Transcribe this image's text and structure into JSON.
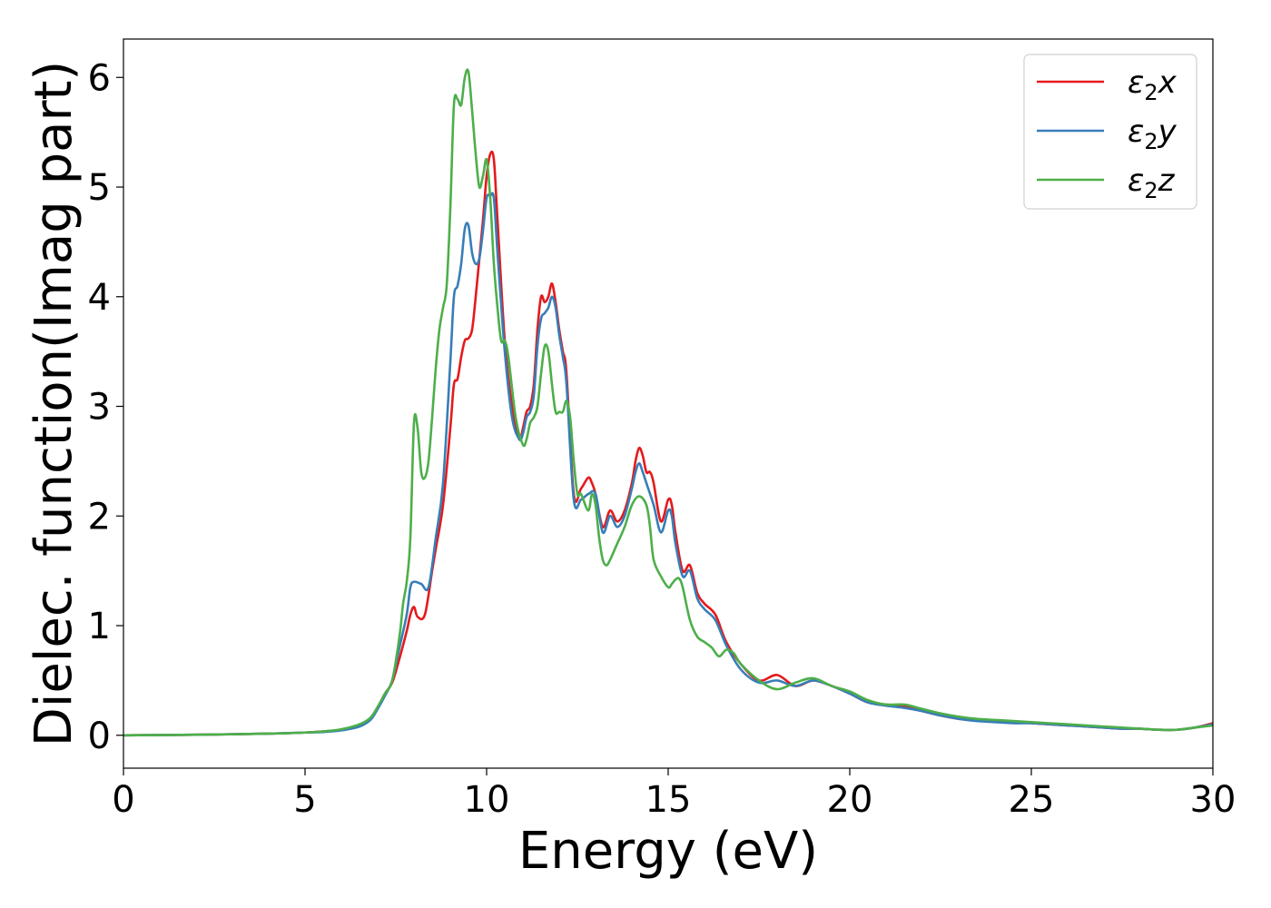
{
  "chart_data": {
    "type": "line",
    "title": "",
    "xlabel": "Energy (eV)",
    "ylabel": "Dielec. function(Imag part)",
    "xlim": [
      0,
      30
    ],
    "ylim": [
      -0.3,
      6.35
    ],
    "xticks": [
      0,
      5,
      10,
      15,
      20,
      25,
      30
    ],
    "yticks": [
      0,
      1,
      2,
      3,
      4,
      5,
      6
    ],
    "grid": false,
    "legend": {
      "position": "top-right"
    },
    "series": [
      {
        "name": "ε₂x",
        "legend_main": "ε",
        "legend_sub": "2",
        "legend_tail": "x",
        "color": "#e41a1c",
        "x": [
          0,
          2,
          4,
          5,
          5.5,
          6,
          6.5,
          6.8,
          7.0,
          7.2,
          7.4,
          7.6,
          7.8,
          7.9,
          8.0,
          8.1,
          8.3,
          8.5,
          8.6,
          8.8,
          9.0,
          9.1,
          9.2,
          9.3,
          9.4,
          9.5,
          9.6,
          9.7,
          9.9,
          10.0,
          10.1,
          10.2,
          10.3,
          10.5,
          10.7,
          10.9,
          11.0,
          11.1,
          11.2,
          11.3,
          11.4,
          11.5,
          11.6,
          11.7,
          11.8,
          11.9,
          12.0,
          12.1,
          12.2,
          12.4,
          12.6,
          12.8,
          12.9,
          13.0,
          13.2,
          13.4,
          13.6,
          13.8,
          14.0,
          14.1,
          14.2,
          14.3,
          14.4,
          14.5,
          14.6,
          14.8,
          15.0,
          15.1,
          15.2,
          15.4,
          15.6,
          15.8,
          16.0,
          16.3,
          16.6,
          17.0,
          17.5,
          18.0,
          18.5,
          19.0,
          19.5,
          20.0,
          20.5,
          21.0,
          21.5,
          22.0,
          22.5,
          23.0,
          23.5,
          24.0,
          24.5,
          25.0,
          25.5,
          26.0,
          26.5,
          27.0,
          27.5,
          28.0,
          28.5,
          29.0,
          29.5,
          30.0
        ],
        "y": [
          0,
          0.005,
          0.015,
          0.025,
          0.035,
          0.05,
          0.09,
          0.15,
          0.25,
          0.38,
          0.48,
          0.7,
          0.95,
          1.1,
          1.17,
          1.08,
          1.1,
          1.5,
          1.7,
          2.1,
          2.8,
          3.2,
          3.25,
          3.45,
          3.6,
          3.62,
          3.7,
          4.0,
          4.7,
          5.1,
          5.3,
          5.25,
          4.7,
          3.6,
          3.0,
          2.7,
          2.8,
          2.95,
          3.0,
          3.2,
          3.7,
          4.0,
          3.95,
          4.0,
          4.12,
          3.95,
          3.7,
          3.5,
          3.3,
          2.2,
          2.25,
          2.35,
          2.3,
          2.2,
          1.9,
          2.05,
          1.95,
          2.05,
          2.3,
          2.5,
          2.62,
          2.55,
          2.4,
          2.4,
          2.3,
          1.95,
          2.15,
          2.1,
          1.85,
          1.5,
          1.55,
          1.3,
          1.2,
          1.1,
          0.85,
          0.65,
          0.5,
          0.55,
          0.45,
          0.5,
          0.45,
          0.38,
          0.3,
          0.28,
          0.27,
          0.22,
          0.18,
          0.15,
          0.14,
          0.13,
          0.12,
          0.11,
          0.1,
          0.09,
          0.08,
          0.07,
          0.06,
          0.06,
          0.05,
          0.05,
          0.07,
          0.11
        ]
      },
      {
        "name": "ε₂y",
        "legend_main": "ε",
        "legend_sub": "2",
        "legend_tail": "y",
        "color": "#377eb8",
        "x": [
          0,
          2,
          4,
          5,
          5.5,
          6,
          6.5,
          6.8,
          7.0,
          7.2,
          7.4,
          7.6,
          7.8,
          7.9,
          8.0,
          8.2,
          8.4,
          8.6,
          8.8,
          9.0,
          9.1,
          9.2,
          9.3,
          9.4,
          9.5,
          9.6,
          9.7,
          9.8,
          9.9,
          10.0,
          10.1,
          10.2,
          10.3,
          10.5,
          10.7,
          10.9,
          11.0,
          11.1,
          11.2,
          11.3,
          11.4,
          11.5,
          11.6,
          11.7,
          11.8,
          11.9,
          12.0,
          12.1,
          12.2,
          12.4,
          12.6,
          12.8,
          13.0,
          13.2,
          13.4,
          13.6,
          13.8,
          14.0,
          14.1,
          14.2,
          14.3,
          14.4,
          14.6,
          14.8,
          15.0,
          15.1,
          15.2,
          15.4,
          15.6,
          15.8,
          16.0,
          16.3,
          16.6,
          17.0,
          17.5,
          18.0,
          18.5,
          19.0,
          19.5,
          20.0,
          20.5,
          21.0,
          21.5,
          22.0,
          22.5,
          23.0,
          23.5,
          24.0,
          24.5,
          25.0,
          25.5,
          26.0,
          26.5,
          27.0,
          27.5,
          28.0,
          28.5,
          29.0,
          29.5,
          30.0
        ],
        "y": [
          0,
          0.005,
          0.015,
          0.025,
          0.03,
          0.045,
          0.08,
          0.14,
          0.24,
          0.36,
          0.5,
          0.8,
          1.1,
          1.35,
          1.4,
          1.38,
          1.35,
          1.8,
          2.3,
          3.4,
          4.0,
          4.1,
          4.3,
          4.62,
          4.65,
          4.4,
          4.3,
          4.35,
          4.6,
          4.9,
          4.92,
          4.9,
          4.4,
          3.5,
          2.9,
          2.7,
          2.75,
          2.9,
          2.95,
          3.1,
          3.55,
          3.8,
          3.85,
          3.9,
          4.0,
          3.9,
          3.65,
          3.45,
          3.2,
          2.15,
          2.15,
          2.2,
          2.2,
          1.85,
          2.0,
          1.9,
          2.0,
          2.25,
          2.4,
          2.48,
          2.4,
          2.3,
          2.1,
          1.85,
          2.05,
          2.0,
          1.75,
          1.45,
          1.5,
          1.25,
          1.15,
          1.05,
          0.82,
          0.6,
          0.48,
          0.5,
          0.45,
          0.5,
          0.45,
          0.38,
          0.3,
          0.27,
          0.25,
          0.22,
          0.18,
          0.15,
          0.13,
          0.12,
          0.11,
          0.11,
          0.1,
          0.09,
          0.08,
          0.07,
          0.06,
          0.06,
          0.05,
          0.05,
          0.07,
          0.1
        ]
      },
      {
        "name": "ε₂z",
        "legend_main": "ε",
        "legend_sub": "2",
        "legend_tail": "z",
        "color": "#4daf4a",
        "x": [
          0,
          2,
          4,
          5,
          5.5,
          6,
          6.5,
          6.8,
          7.0,
          7.2,
          7.4,
          7.6,
          7.7,
          7.8,
          7.9,
          8.0,
          8.1,
          8.2,
          8.3,
          8.4,
          8.5,
          8.6,
          8.7,
          8.8,
          8.9,
          9.0,
          9.1,
          9.2,
          9.3,
          9.4,
          9.5,
          9.6,
          9.7,
          9.8,
          9.9,
          10.0,
          10.1,
          10.2,
          10.3,
          10.4,
          10.5,
          10.6,
          10.8,
          11.0,
          11.1,
          11.2,
          11.3,
          11.4,
          11.5,
          11.6,
          11.7,
          11.8,
          11.9,
          12.0,
          12.1,
          12.2,
          12.3,
          12.4,
          12.5,
          12.6,
          12.8,
          12.9,
          13.0,
          13.1,
          13.2,
          13.3,
          13.4,
          13.6,
          13.8,
          14.0,
          14.2,
          14.4,
          14.5,
          14.6,
          14.8,
          15.0,
          15.1,
          15.2,
          15.3,
          15.4,
          15.6,
          15.8,
          16.0,
          16.2,
          16.4,
          16.6,
          16.8,
          17.0,
          17.5,
          18.0,
          18.5,
          19.0,
          19.5,
          20.0,
          20.5,
          21.0,
          21.5,
          22.0,
          22.5,
          23.0,
          23.5,
          24.0,
          24.5,
          25.0,
          25.5,
          26.0,
          26.5,
          27.0,
          27.5,
          28.0,
          28.5,
          29.0,
          29.5,
          30.0
        ],
        "y": [
          0,
          0.005,
          0.015,
          0.025,
          0.035,
          0.055,
          0.1,
          0.16,
          0.26,
          0.38,
          0.5,
          0.9,
          1.2,
          1.4,
          1.8,
          2.85,
          2.8,
          2.4,
          2.35,
          2.5,
          2.9,
          3.35,
          3.7,
          3.9,
          4.1,
          4.8,
          5.75,
          5.8,
          5.75,
          6.0,
          6.05,
          5.7,
          5.3,
          5.0,
          5.1,
          5.25,
          4.9,
          4.3,
          3.9,
          3.6,
          3.6,
          3.45,
          2.9,
          2.65,
          2.7,
          2.85,
          2.9,
          3.0,
          3.3,
          3.55,
          3.5,
          3.2,
          2.95,
          2.95,
          2.95,
          3.05,
          2.9,
          2.5,
          2.2,
          2.2,
          2.05,
          2.2,
          2.1,
          1.8,
          1.6,
          1.55,
          1.6,
          1.75,
          1.9,
          2.1,
          2.18,
          2.1,
          1.9,
          1.6,
          1.45,
          1.35,
          1.38,
          1.42,
          1.43,
          1.35,
          1.05,
          0.9,
          0.85,
          0.8,
          0.72,
          0.78,
          0.75,
          0.65,
          0.5,
          0.42,
          0.48,
          0.52,
          0.45,
          0.4,
          0.32,
          0.28,
          0.28,
          0.24,
          0.2,
          0.17,
          0.15,
          0.14,
          0.13,
          0.12,
          0.11,
          0.1,
          0.09,
          0.08,
          0.07,
          0.06,
          0.05,
          0.05,
          0.07,
          0.09
        ]
      }
    ]
  }
}
